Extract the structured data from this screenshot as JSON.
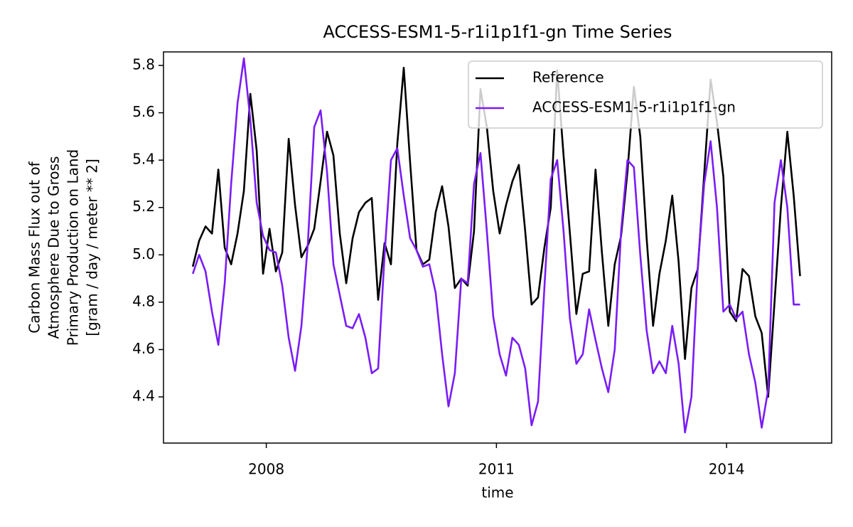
{
  "chart_data": {
    "type": "line",
    "title": "ACCESS-ESM1-5-r1i1p1f1-gn Time Series",
    "xlabel": "time",
    "ylabel": [
      "Carbon Mass Flux out of",
      "Atmosphere Due to Gross",
      "Primary Production on Land",
      "[gram / day / meter ** 2]"
    ],
    "x": [
      2007.042,
      2007.125,
      2007.208,
      2007.292,
      2007.375,
      2007.458,
      2007.542,
      2007.625,
      2007.708,
      2007.792,
      2007.875,
      2007.958,
      2008.042,
      2008.125,
      2008.208,
      2008.292,
      2008.375,
      2008.458,
      2008.542,
      2008.625,
      2008.708,
      2008.792,
      2008.875,
      2008.958,
      2009.042,
      2009.125,
      2009.208,
      2009.292,
      2009.375,
      2009.458,
      2009.542,
      2009.625,
      2009.708,
      2009.792,
      2009.875,
      2009.958,
      2010.042,
      2010.125,
      2010.208,
      2010.292,
      2010.375,
      2010.458,
      2010.542,
      2010.625,
      2010.708,
      2010.792,
      2010.875,
      2010.958,
      2011.042,
      2011.125,
      2011.208,
      2011.292,
      2011.375,
      2011.458,
      2011.542,
      2011.625,
      2011.708,
      2011.792,
      2011.875,
      2011.958,
      2012.042,
      2012.125,
      2012.208,
      2012.292,
      2012.375,
      2012.458,
      2012.542,
      2012.625,
      2012.708,
      2012.792,
      2012.875,
      2012.958,
      2013.042,
      2013.125,
      2013.208,
      2013.292,
      2013.375,
      2013.458,
      2013.542,
      2013.625,
      2013.708,
      2013.792,
      2013.875,
      2013.958,
      2014.042,
      2014.125,
      2014.208,
      2014.292,
      2014.375,
      2014.458,
      2014.542,
      2014.625,
      2014.708,
      2014.792,
      2014.875,
      2014.958
    ],
    "series": [
      {
        "name": "Reference",
        "color": "#000000",
        "values": [
          4.95,
          5.06,
          5.12,
          5.09,
          5.36,
          5.03,
          4.96,
          5.09,
          5.27,
          5.68,
          5.44,
          4.92,
          5.11,
          4.93,
          5.01,
          5.49,
          5.21,
          4.99,
          5.04,
          5.11,
          5.31,
          5.52,
          5.42,
          5.09,
          4.88,
          5.07,
          5.18,
          5.22,
          5.24,
          4.81,
          5.05,
          4.96,
          5.47,
          5.79,
          5.39,
          5.02,
          4.96,
          4.98,
          5.18,
          5.29,
          5.12,
          4.86,
          4.9,
          4.87,
          5.1,
          5.7,
          5.54,
          5.27,
          5.09,
          5.21,
          5.31,
          5.38,
          5.1,
          4.79,
          4.82,
          5.03,
          5.2,
          5.78,
          5.42,
          5.09,
          4.75,
          4.92,
          4.93,
          5.36,
          5.01,
          4.7,
          4.96,
          5.08,
          5.35,
          5.71,
          5.5,
          5.07,
          4.7,
          4.92,
          5.06,
          5.25,
          4.97,
          4.56,
          4.86,
          4.94,
          5.34,
          5.74,
          5.56,
          5.33,
          4.76,
          4.72,
          4.94,
          4.91,
          4.74,
          4.67,
          4.4,
          4.8,
          5.2,
          5.52,
          5.25,
          4.91
        ]
      },
      {
        "name": "ACCESS-ESM1-5-r1i1p1f1-gn",
        "color": "#7a1cf5",
        "values": [
          4.92,
          5.0,
          4.93,
          4.76,
          4.62,
          4.88,
          5.3,
          5.64,
          5.83,
          5.57,
          5.22,
          5.08,
          5.02,
          5.01,
          4.87,
          4.65,
          4.51,
          4.7,
          5.05,
          5.54,
          5.61,
          5.35,
          4.96,
          4.83,
          4.7,
          4.69,
          4.75,
          4.65,
          4.5,
          4.52,
          5.0,
          5.4,
          5.45,
          5.25,
          5.07,
          5.02,
          4.95,
          4.96,
          4.84,
          4.58,
          4.36,
          4.5,
          4.9,
          4.88,
          5.3,
          5.43,
          5.1,
          4.74,
          4.58,
          4.49,
          4.65,
          4.62,
          4.52,
          4.28,
          4.38,
          4.86,
          5.32,
          5.4,
          5.1,
          4.73,
          4.54,
          4.58,
          4.77,
          4.64,
          4.52,
          4.42,
          4.6,
          5.1,
          5.4,
          5.37,
          5.0,
          4.68,
          4.5,
          4.55,
          4.5,
          4.7,
          4.54,
          4.25,
          4.4,
          4.95,
          5.3,
          5.48,
          5.2,
          4.76,
          4.79,
          4.73,
          4.76,
          4.58,
          4.46,
          4.27,
          4.43,
          5.22,
          5.4,
          5.2,
          4.79,
          4.79
        ]
      }
    ],
    "xlim": [
      2006.66,
      2015.37
    ],
    "xticks": [
      2008,
      2011,
      2014
    ],
    "ylim": [
      4.205,
      5.857
    ],
    "yticks": [
      {
        "value": 4.4,
        "label": "4.4"
      },
      {
        "value": 4.6,
        "label": "4.6"
      },
      {
        "value": 4.8,
        "label": "4.8"
      },
      {
        "value": 5.0,
        "label": "5.0"
      },
      {
        "value": 5.2,
        "label": "5.2"
      },
      {
        "value": 5.4,
        "label": "5.4"
      },
      {
        "value": 5.6,
        "label": "5.6"
      },
      {
        "value": 5.8,
        "label": "5.8"
      }
    ],
    "legend": "upper right",
    "grid": false
  }
}
